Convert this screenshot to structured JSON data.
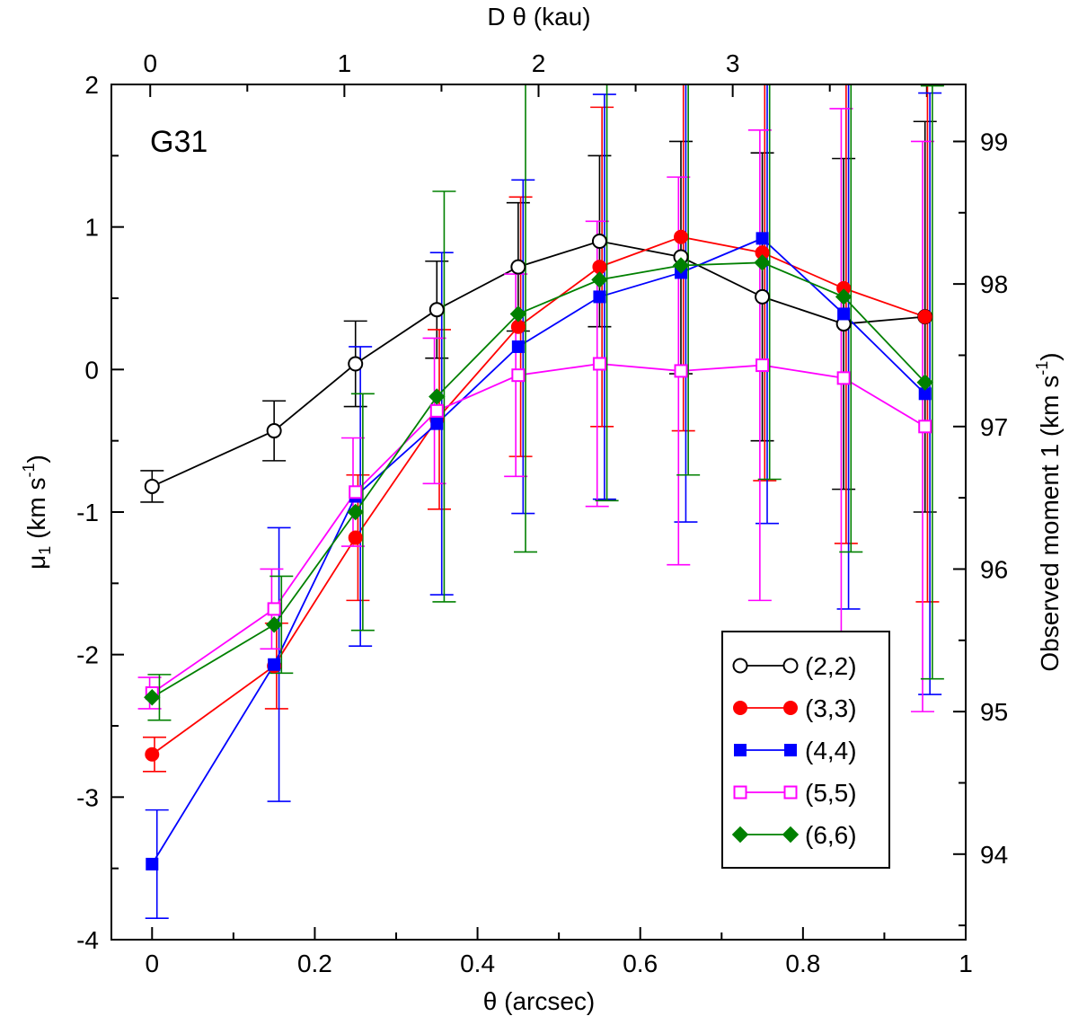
{
  "chart_data": {
    "type": "line",
    "panel_label": "G31",
    "xlabel": "θ (arcsec)",
    "ylabel_main": "μ",
    "ylabel_sub": "1",
    "ylabel_units": " (km s",
    "ylabel_units_sup": "-1",
    "ylabel_close": ")",
    "top_xlabel": "D θ (kau)",
    "right_ylabel_main": "Observed moment 1 (km s",
    "right_ylabel_sup": "-1",
    "right_ylabel_close": ")",
    "xlim": [
      -0.05,
      1.0
    ],
    "ylim": [
      -4,
      2
    ],
    "top_xlim": [
      -0.2,
      4.2
    ],
    "right_ylim": [
      93.4,
      99.4
    ],
    "x_ticks": [
      0,
      0.2,
      0.4,
      0.6,
      0.8,
      1
    ],
    "x_tick_labels": [
      "0",
      "0.2",
      "0.4",
      "0.6",
      "0.8",
      "1"
    ],
    "y_ticks": [
      -4,
      -3,
      -2,
      -1,
      0,
      1,
      2
    ],
    "y_tick_labels": [
      "-4",
      "-3",
      "-2",
      "-1",
      "0",
      "1",
      "2"
    ],
    "top_ticks": [
      0,
      1,
      2,
      3
    ],
    "top_tick_labels": [
      "0",
      "1",
      "2",
      "3"
    ],
    "right_ticks": [
      94,
      95,
      96,
      97,
      98,
      99
    ],
    "right_tick_labels": [
      "94",
      "95",
      "96",
      "97",
      "98",
      "99"
    ],
    "legend_position": "bottom-right",
    "series": [
      {
        "name": "(2,2)",
        "color": "#000000",
        "marker": "circle-open",
        "x": [
          0,
          0.15,
          0.25,
          0.35,
          0.45,
          0.55,
          0.65,
          0.75,
          0.85,
          0.95
        ],
        "y": [
          -0.82,
          -0.43,
          0.04,
          0.42,
          0.72,
          0.9,
          0.79,
          0.51,
          0.32,
          0.37
        ],
        "err_low": [
          -0.93,
          -0.64,
          -0.26,
          0.08,
          0.27,
          0.3,
          -0.03,
          -0.5,
          -0.84,
          -1.0
        ],
        "err_high": [
          -0.71,
          -0.22,
          0.34,
          0.76,
          1.17,
          1.5,
          1.6,
          1.52,
          1.48,
          1.74
        ],
        "offset": 0
      },
      {
        "name": "(3,3)",
        "color": "#ff0000",
        "marker": "circle-filled",
        "x": [
          0,
          0.15,
          0.25,
          0.35,
          0.45,
          0.55,
          0.65,
          0.75,
          0.85,
          0.95
        ],
        "y": [
          -2.7,
          -2.08,
          -1.18,
          -0.35,
          0.3,
          0.72,
          0.93,
          0.82,
          0.57,
          0.37
        ],
        "err_low": [
          -2.82,
          -2.38,
          -1.62,
          -0.98,
          -0.61,
          -0.4,
          -0.43,
          -0.78,
          -1.22,
          -1.63
        ],
        "err_high": [
          -2.58,
          -1.78,
          -0.74,
          0.28,
          1.21,
          1.84,
          2.29,
          2.42,
          2.36,
          2.37
        ],
        "offset": 0.003
      },
      {
        "name": "(4,4)",
        "color": "#0000ff",
        "marker": "square-filled",
        "x": [
          0,
          0.15,
          0.25,
          0.35,
          0.45,
          0.55,
          0.65,
          0.75,
          0.85,
          0.95
        ],
        "y": [
          -3.47,
          -2.07,
          -0.89,
          -0.38,
          0.16,
          0.51,
          0.68,
          0.92,
          0.39,
          -0.17
        ],
        "err_low": [
          -3.85,
          -3.03,
          -1.94,
          -1.58,
          -1.01,
          -0.91,
          -1.07,
          -1.08,
          -1.68,
          -2.28
        ],
        "err_high": [
          -3.09,
          -1.11,
          0.16,
          0.82,
          1.33,
          1.93,
          2.43,
          2.92,
          2.46,
          1.94
        ],
        "offset": 0.006
      },
      {
        "name": "(5,5)",
        "color": "#ff00ff",
        "marker": "square-open",
        "x": [
          0,
          0.15,
          0.25,
          0.35,
          0.45,
          0.55,
          0.65,
          0.75,
          0.85,
          0.95
        ],
        "y": [
          -2.27,
          -1.68,
          -0.86,
          -0.29,
          -0.04,
          0.04,
          -0.01,
          0.03,
          -0.06,
          -0.4
        ],
        "err_low": [
          -2.38,
          -1.96,
          -1.24,
          -0.8,
          -0.75,
          -0.96,
          -1.37,
          -1.62,
          -1.95,
          -2.4
        ],
        "err_high": [
          -2.16,
          -1.4,
          -0.48,
          0.22,
          0.67,
          1.04,
          1.35,
          1.68,
          1.83,
          1.6
        ],
        "offset": -0.003
      },
      {
        "name": "(6,6)",
        "color": "#008000",
        "marker": "diamond-filled",
        "x": [
          0,
          0.15,
          0.25,
          0.35,
          0.45,
          0.55,
          0.65,
          0.75,
          0.85,
          0.95
        ],
        "y": [
          -2.3,
          -1.79,
          -1.0,
          -0.19,
          0.39,
          0.63,
          0.73,
          0.75,
          0.51,
          -0.09
        ],
        "err_low": [
          -2.46,
          -2.13,
          -1.83,
          -1.63,
          -1.28,
          -0.92,
          -0.74,
          -0.77,
          -1.28,
          -2.17
        ],
        "err_high": [
          -2.14,
          -1.45,
          -0.17,
          1.25,
          2.06,
          2.18,
          2.2,
          2.27,
          2.3,
          1.99
        ],
        "offset": 0.009
      }
    ]
  }
}
